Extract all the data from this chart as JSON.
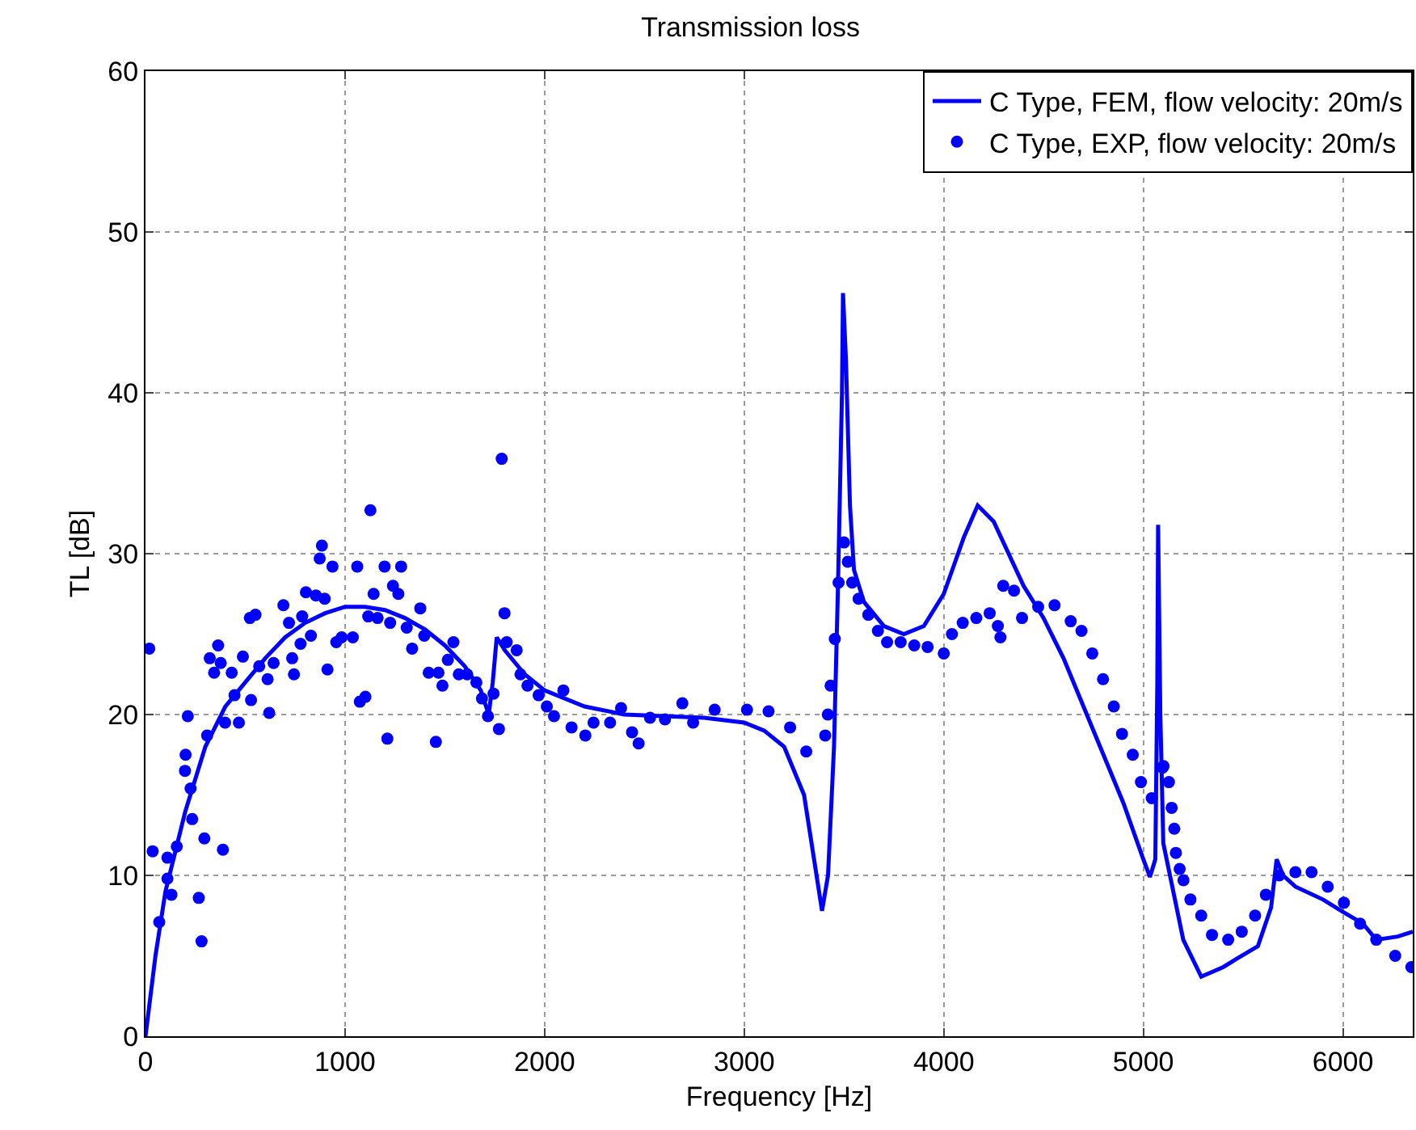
{
  "chart_data": {
    "type": "line",
    "title": "Transmission loss",
    "xlabel": "Frequency [Hz]",
    "ylabel": "TL [dB]",
    "xlim": [
      0,
      6350
    ],
    "xticks": [
      0,
      1000,
      2000,
      3000,
      4000,
      5000,
      6000
    ],
    "ylim": [
      0,
      60
    ],
    "yticks": [
      0,
      10,
      20,
      30,
      40,
      50,
      60
    ],
    "grid": true,
    "legend": "top right",
    "series": [
      {
        "name": "C Type, FEM, flow velocity: 20m/s",
        "line_style": "solid",
        "marker": "none",
        "color": "#0000ff",
        "x": [
          0,
          50,
          100,
          200,
          300,
          400,
          500,
          600,
          700,
          800,
          900,
          1000,
          1100,
          1200,
          1300,
          1400,
          1500,
          1600,
          1680,
          1720,
          1740,
          1760,
          1800,
          1900,
          2000,
          2200,
          2400,
          2600,
          2800,
          3000,
          3100,
          3200,
          3300,
          3350,
          3390,
          3420,
          3450,
          3470,
          3490,
          3495,
          3510,
          3530,
          3550,
          3600,
          3700,
          3800,
          3900,
          4000,
          4100,
          4170,
          4250,
          4400,
          4500,
          4600,
          4700,
          4800,
          4900,
          5000,
          5033,
          5060,
          5070,
          5074,
          5085,
          5100,
          5200,
          5290,
          5400,
          5466,
          5574,
          5640,
          5668,
          5700,
          5762,
          5900,
          6005,
          6100,
          6167,
          6275,
          6350
        ],
        "values": [
          0,
          5,
          9,
          14,
          18,
          20.5,
          22,
          23.5,
          24.8,
          25.7,
          26.3,
          26.7,
          26.7,
          26.5,
          26,
          25.3,
          24.3,
          23,
          21.5,
          20,
          22,
          24.8,
          24,
          22.5,
          21.5,
          20.5,
          20,
          19.9,
          19.8,
          19.5,
          19,
          18,
          15,
          11,
          7.8,
          10,
          18,
          28,
          40,
          46.2,
          42,
          33,
          29,
          27,
          25.5,
          25,
          25.5,
          27.5,
          31,
          33,
          32,
          28,
          26,
          23.5,
          20.5,
          17.5,
          14.5,
          11,
          9.9,
          11,
          22,
          31.8,
          20,
          12,
          6,
          3.7,
          4.3,
          4.8,
          5.6,
          8,
          11,
          10,
          9.3,
          8.5,
          7.7,
          7,
          6,
          6.2,
          6.5
        ]
      },
      {
        "name": "C Type, EXP, flow velocity: 20m/s",
        "type": "scatter",
        "marker": "circle",
        "color": "#0000ff",
        "x": [
          19,
          36,
          69,
          110,
          110,
          130,
          157,
          198,
          201,
          226,
          212,
          234,
          267,
          281,
          295,
          309,
          322,
          344,
          364,
          377,
          388,
          399,
          432,
          446,
          468,
          488,
          529,
          523,
          551,
          570,
          612,
          620,
          642,
          691,
          719,
          735,
          744,
          777,
          785,
          804,
          829,
          854,
          873,
          884,
          898,
          912,
          937,
          956,
          983,
          1039,
          1061,
          1074,
          1102,
          1127,
          1116,
          1143,
          1163,
          1198,
          1212,
          1226,
          1240,
          1267,
          1281,
          1309,
          1336,
          1377,
          1397,
          1419,
          1455,
          1468,
          1488,
          1515,
          1543,
          1570,
          1612,
          1658,
          1686,
          1716,
          1744,
          1771,
          1785,
          1799,
          1810,
          1860,
          1879,
          1914,
          1970,
          2011,
          2047,
          2094,
          2135,
          2204,
          2245,
          2328,
          2383,
          2438,
          2471,
          2528,
          2603,
          2690,
          2744,
          2852,
          3014,
          3122,
          3230,
          3311,
          3406,
          3419,
          3433,
          3454,
          3473,
          3500,
          3519,
          3541,
          3573,
          3622,
          3670,
          3716,
          3784,
          3852,
          3919,
          4000,
          4041,
          4095,
          4163,
          4230,
          4271,
          4284,
          4298,
          4352,
          4392,
          4473,
          4555,
          4636,
          4690,
          4744,
          4798,
          4852,
          4893,
          4947,
          4988,
          5042,
          5096,
          5101,
          5128,
          5142,
          5155,
          5163,
          5182,
          5201,
          5236,
          5290,
          5344,
          5425,
          5493,
          5560,
          5614,
          5681,
          5762,
          5843,
          5924,
          6005,
          6086,
          6167,
          6262,
          6343
        ],
        "values": [
          24.1,
          11.5,
          7.1,
          9.8,
          11.1,
          8.8,
          11.8,
          16.5,
          17.5,
          15.4,
          19.9,
          13.5,
          8.6,
          5.9,
          12.3,
          18.7,
          23.5,
          22.6,
          24.3,
          23.2,
          11.6,
          19.5,
          22.6,
          21.2,
          19.5,
          23.6,
          20.9,
          26,
          26.2,
          23,
          22.2,
          20.1,
          23.2,
          26.8,
          25.7,
          23.5,
          22.5,
          24.4,
          26.1,
          27.6,
          24.9,
          27.4,
          29.7,
          30.5,
          27.2,
          22.8,
          29.2,
          24.5,
          24.8,
          24.8,
          29.2,
          20.8,
          21.1,
          32.7,
          26.1,
          27.5,
          26,
          29.2,
          18.5,
          25.7,
          28,
          27.5,
          29.2,
          25.4,
          24.1,
          26.6,
          24.9,
          22.6,
          18.3,
          22.6,
          21.8,
          23.4,
          24.5,
          22.5,
          22.5,
          22,
          21,
          19.9,
          21.3,
          19.1,
          35.9,
          26.3,
          24.5,
          24,
          22.5,
          21.8,
          21.2,
          20.5,
          19.9,
          21.5,
          19.2,
          18.7,
          19.5,
          19.5,
          20.4,
          18.9,
          18.2,
          19.8,
          19.7,
          20.7,
          19.5,
          20.3,
          20.3,
          20.2,
          19.2,
          17.7,
          18.7,
          20,
          21.8,
          24.7,
          28.2,
          30.7,
          29.5,
          28.2,
          27.2,
          26.2,
          25.2,
          24.5,
          24.5,
          24.3,
          24.2,
          23.8,
          25,
          25.7,
          26,
          26.3,
          25.5,
          24.8,
          28,
          27.7,
          26,
          26.7,
          26.8,
          25.8,
          25.2,
          23.8,
          22.2,
          20.5,
          18.8,
          17.5,
          15.8,
          14.8,
          16.7,
          16.8,
          15.8,
          14.2,
          12.9,
          11.4,
          10.4,
          9.7,
          8.5,
          7.5,
          6.3,
          6,
          6.5,
          7.5,
          8.8,
          10,
          10.2,
          10.2,
          9.3,
          8.3,
          7,
          6,
          5,
          4.3
        ]
      }
    ]
  }
}
